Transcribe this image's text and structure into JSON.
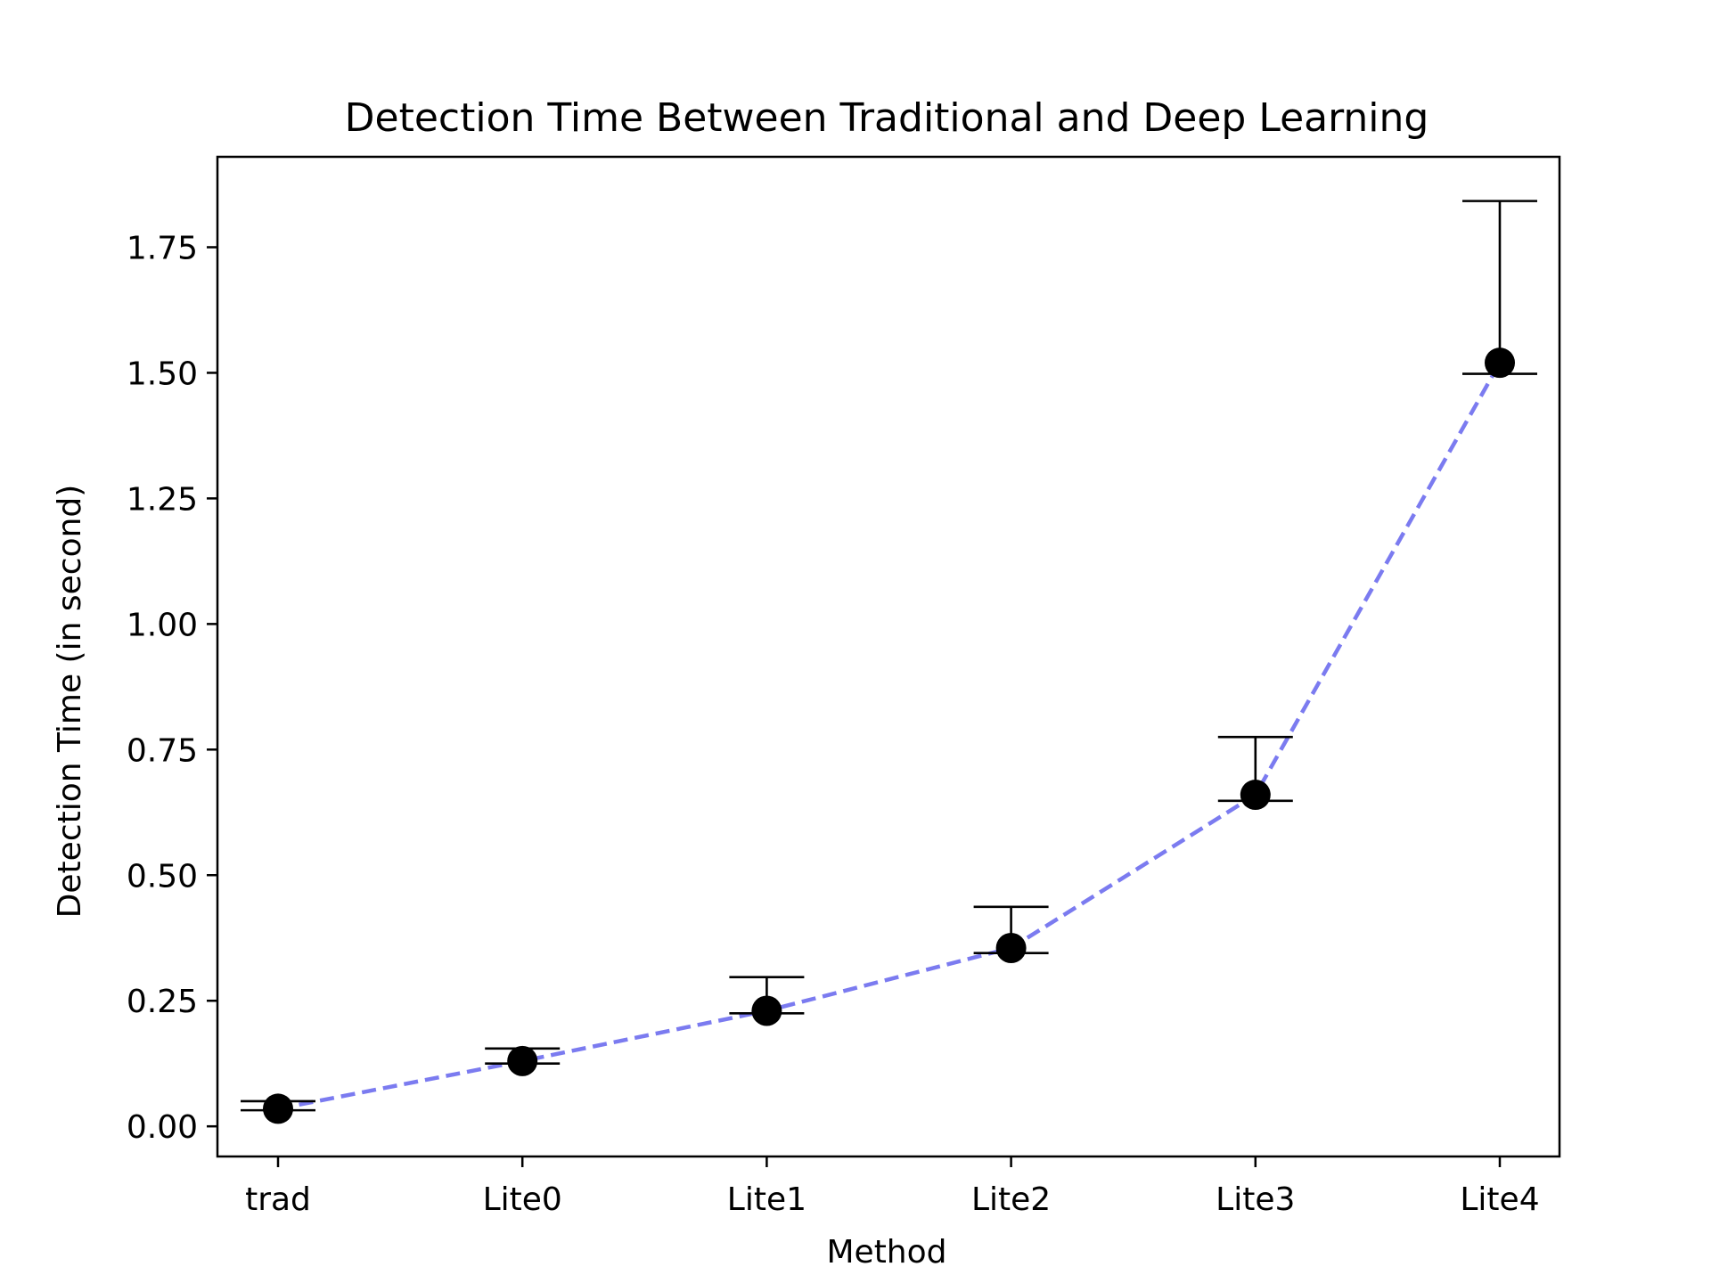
{
  "chart_data": {
    "type": "line",
    "title": "Detection Time Between Traditional and Deep Learning",
    "xlabel": "Method",
    "ylabel": "Detection Time (in second)",
    "categories": [
      "trad",
      "Lite0",
      "Lite1",
      "Lite2",
      "Lite3",
      "Lite4"
    ],
    "series": [
      {
        "values": [
          0.035,
          0.13,
          0.23,
          0.355,
          0.66,
          1.52
        ],
        "error_low": [
          0.032,
          0.125,
          0.225,
          0.345,
          0.648,
          1.498
        ],
        "error_high": [
          0.05,
          0.155,
          0.297,
          0.437,
          0.775,
          1.842
        ],
        "line_style": "dashed",
        "line_color": "#7b7bf0",
        "marker_color": "#000000"
      }
    ],
    "ylim": [
      -0.06,
      1.93
    ],
    "yticks": [
      0.0,
      0.25,
      0.5,
      0.75,
      1.0,
      1.25,
      1.5,
      1.75
    ],
    "ytick_labels": [
      "0.00",
      "0.25",
      "0.50",
      "0.75",
      "1.00",
      "1.25",
      "1.50",
      "1.75"
    ],
    "grid": false,
    "legend": "none"
  }
}
